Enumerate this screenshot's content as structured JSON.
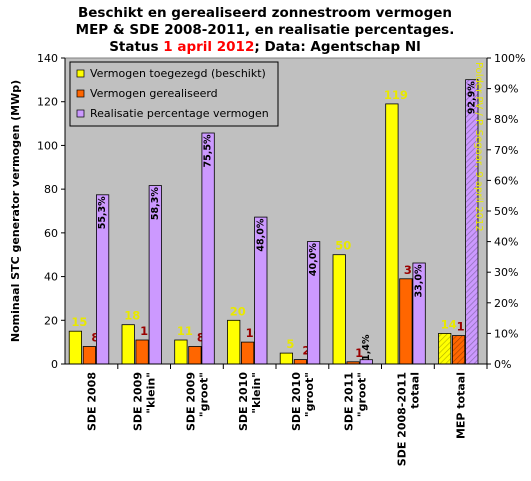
{
  "chart_data": {
    "type": "bar",
    "title_line1": "Beschikt en gerealiseerd zonnestroom vermogen",
    "title_line2": "MEP & SDE 2008-2011, en realisatie percentages.",
    "title_line3_pre": "Status ",
    "title_line3_date": "1 april 2012",
    "title_line3_post": "; Data: Agentschap Nl",
    "ylabel": "Nominaal STC generator vermogen (MWp)",
    "ylim": [
      0,
      140
    ],
    "yticks": [
      "0",
      "20",
      "40",
      "60",
      "80",
      "100",
      "120",
      "140"
    ],
    "y2lim": [
      0,
      100
    ],
    "y2ticks": [
      "0%",
      "10%",
      "20%",
      "30%",
      "40%",
      "50%",
      "60%",
      "70%",
      "80%",
      "90%",
      "100%"
    ],
    "categories": [
      [
        "SDE 2008"
      ],
      [
        "SDE 2009",
        "\"klein\""
      ],
      [
        "SDE 2009",
        "\"groot\""
      ],
      [
        "SDE 2010",
        "\"klein\""
      ],
      [
        "SDE 2010",
        "\"groot\""
      ],
      [
        "SDE 2011",
        "\"groot\""
      ],
      [
        "SDE 2008-2011",
        "totaal"
      ],
      [
        "MEP totaal"
      ]
    ],
    "series": [
      {
        "name": "Vermogen toegezegd (beschikt)",
        "axis": "left",
        "color": "#ffff00",
        "values": [
          15,
          18,
          11,
          20,
          5,
          50,
          119,
          14
        ],
        "labels": [
          "15",
          "18",
          "11",
          "20",
          "5",
          "50",
          "119",
          "14"
        ],
        "label_color": "#e8e800"
      },
      {
        "name": "Vermogen gerealiseerd",
        "axis": "left",
        "color": "#ff6600",
        "values": [
          8,
          11,
          8,
          10,
          2,
          1,
          39,
          13
        ],
        "labels": [
          "8",
          "11",
          "8",
          "10",
          "2",
          "1",
          "39",
          "13"
        ],
        "label_color": "#990000"
      },
      {
        "name": "Realisatie percentage vermogen",
        "axis": "right",
        "color": "#cc99ff",
        "values": [
          55.3,
          58.3,
          75.5,
          48.0,
          40.0,
          1.4,
          33.0,
          92.9
        ],
        "labels": [
          "55,3%",
          "58,3%",
          "75,5%",
          "48,0%",
          "40,0%",
          "1,4%",
          "33,0%",
          "92,9%"
        ],
        "label_color": "#000000"
      }
    ],
    "watermark": "Polder PV / P. Segaar, 9 april 2012",
    "watermark_color": "#e8e800",
    "legend_position": "top-left",
    "grid": false
  }
}
